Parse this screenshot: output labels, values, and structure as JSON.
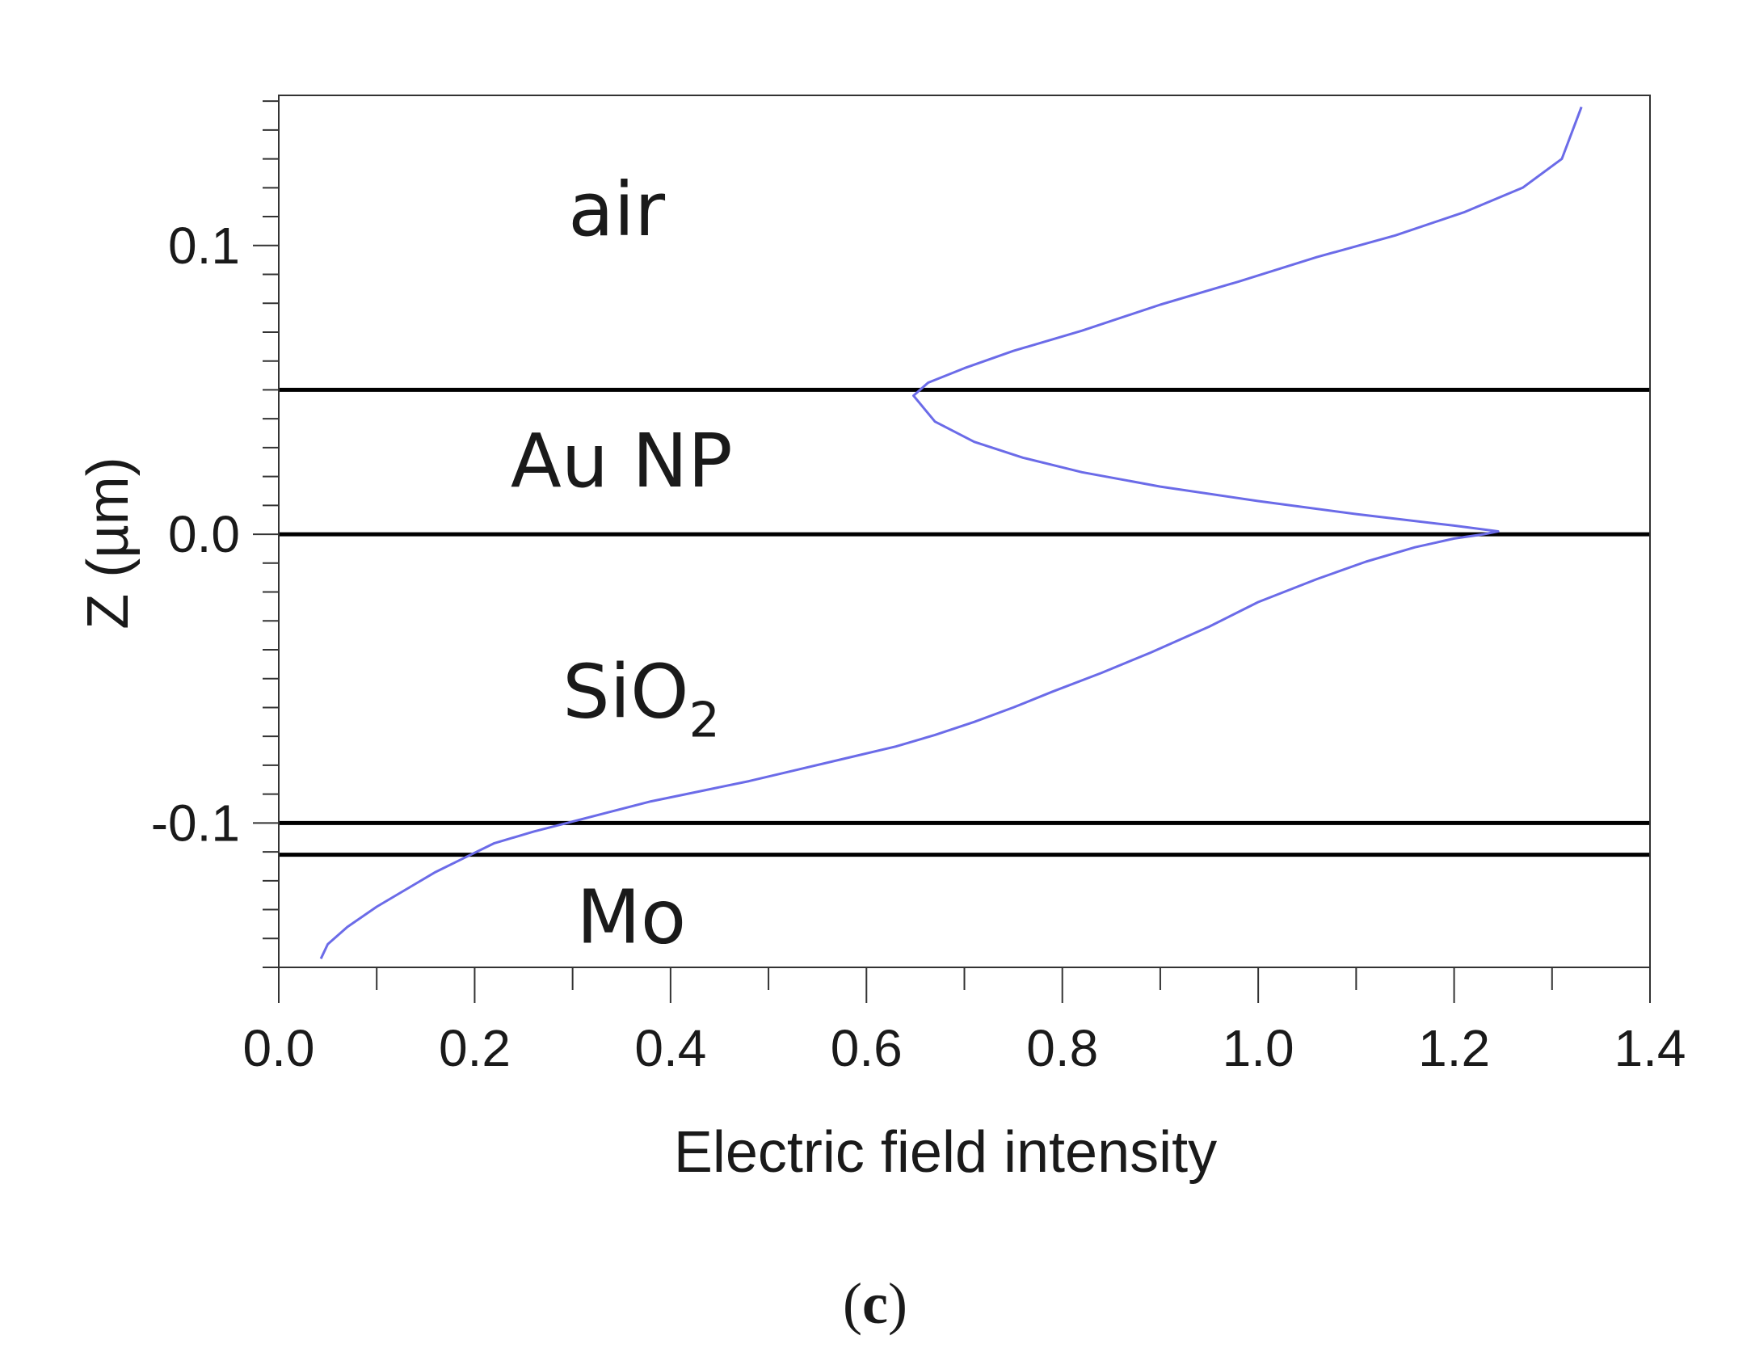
{
  "chart_data": {
    "type": "line",
    "title": "",
    "xlabel": "Electric field intensity",
    "ylabel": "Z (µm)",
    "xlim": [
      0.0,
      1.4
    ],
    "ylim": [
      -0.15,
      0.152
    ],
    "x_ticks": [
      "0.0",
      "0.2",
      "0.4",
      "0.6",
      "0.8",
      "1.0",
      "1.2",
      "1.4"
    ],
    "y_ticks": [
      {
        "value": 0.1,
        "label": "0.1"
      },
      {
        "value": 0.0,
        "label": "0.0"
      },
      {
        "value": -0.1,
        "label": "-0.1"
      }
    ],
    "grid": false,
    "line_color": "#6b6be8",
    "boundary_color": "#000000",
    "boundaries": [
      0.05,
      0.0,
      -0.1,
      -0.111
    ],
    "layers": [
      {
        "name": "air",
        "x": 0.345,
        "z": 0.112
      },
      {
        "name": "Au NP",
        "x": 0.35,
        "z": 0.025
      },
      {
        "name": "SiO",
        "subscript": "2",
        "x": 0.37,
        "z": -0.055
      },
      {
        "name": "Mo",
        "x": 0.36,
        "z": -0.133
      }
    ],
    "series": [
      {
        "name": "Electric field intensity",
        "x": [
          0.043,
          0.05,
          0.07,
          0.1,
          0.13,
          0.16,
          0.19,
          0.22,
          0.26,
          0.3,
          0.34,
          0.38,
          0.43,
          0.48,
          0.53,
          0.58,
          0.63,
          0.67,
          0.71,
          0.75,
          0.79,
          0.84,
          0.89,
          0.95,
          1.0,
          1.06,
          1.11,
          1.16,
          1.2,
          1.23,
          1.245,
          1.2,
          1.1,
          1.0,
          0.9,
          0.82,
          0.76,
          0.71,
          0.67,
          0.648,
          0.663,
          0.7,
          0.75,
          0.82,
          0.9,
          0.98,
          1.06,
          1.14,
          1.21,
          1.27,
          1.31,
          1.33
        ],
        "z": [
          -0.147,
          -0.142,
          -0.136,
          -0.129,
          -0.123,
          -0.117,
          -0.112,
          -0.107,
          -0.103,
          -0.0995,
          -0.096,
          -0.0925,
          -0.089,
          -0.0855,
          -0.0815,
          -0.0775,
          -0.0735,
          -0.0695,
          -0.065,
          -0.06,
          -0.0545,
          -0.048,
          -0.041,
          -0.032,
          -0.0235,
          -0.0155,
          -0.0095,
          -0.0045,
          -0.0015,
          0.0,
          0.001,
          0.003,
          0.007,
          0.0115,
          0.0165,
          0.0215,
          0.0265,
          0.032,
          0.039,
          0.048,
          0.0525,
          0.0575,
          0.0635,
          0.0705,
          0.0795,
          0.0875,
          0.096,
          0.1035,
          0.1115,
          0.12,
          0.13,
          0.148
        ]
      }
    ]
  },
  "caption": {
    "open": "(",
    "letter": "c",
    "close": ")"
  }
}
